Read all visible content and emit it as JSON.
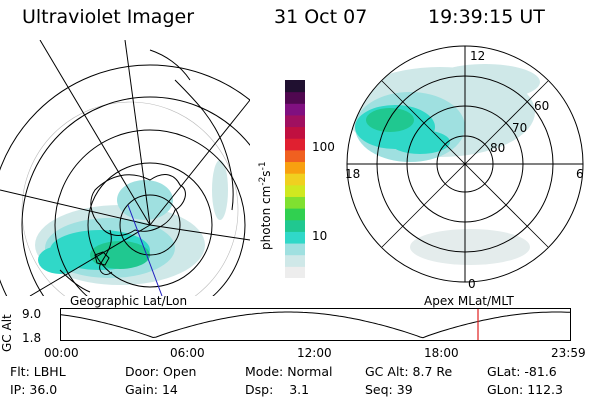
{
  "header": {
    "instrument": "Ultraviolet Imager",
    "date": "31 Oct 07",
    "time": "19:39:15 UT"
  },
  "left_map": {
    "label": "Geographic Lat/Lon"
  },
  "right_map": {
    "label": "Apex MLat/MLT",
    "mlt_labels": [
      "12",
      "18",
      "6",
      "0"
    ],
    "lat_labels": [
      "60",
      "70",
      "80"
    ]
  },
  "colorbar": {
    "unit_label": "photon cm",
    "unit_sup1": "-2",
    "unit_mid": "s",
    "unit_sup2": "-1",
    "ticks": [
      "100",
      "10"
    ],
    "colors": [
      "#ededed",
      "#cfe8e8",
      "#9fe0e0",
      "#30d8c8",
      "#20c890",
      "#30d050",
      "#80e030",
      "#d0e820",
      "#f0d020",
      "#f8a010",
      "#f06020",
      "#e02030",
      "#c01040",
      "#a01060",
      "#801080",
      "#500850",
      "#201030"
    ]
  },
  "altitude_plot": {
    "axis_label": "GC Alt",
    "y_ticks": [
      "9.0",
      "1.8"
    ],
    "x_ticks": [
      "00:00",
      "06:00",
      "12:00",
      "18:00",
      "23:59"
    ],
    "current_time_color": "#e02020"
  },
  "status": {
    "row1": [
      {
        "key": "Flt:",
        "value": "LBHL"
      },
      {
        "key": "Door:",
        "value": "Open"
      },
      {
        "key": "Mode:",
        "value": "Normal"
      },
      {
        "key": "GC Alt:",
        "value": "8.7 Re"
      },
      {
        "key": "GLat:",
        "value": "-81.6"
      }
    ],
    "row2": [
      {
        "key": "IP:",
        "value": "36.0"
      },
      {
        "key": "Gain:",
        "value": "14"
      },
      {
        "key": "Dsp:",
        "value": "3.1"
      },
      {
        "key": "Seq:",
        "value": "39"
      },
      {
        "key": "GLon:",
        "value": "112.3"
      }
    ]
  }
}
